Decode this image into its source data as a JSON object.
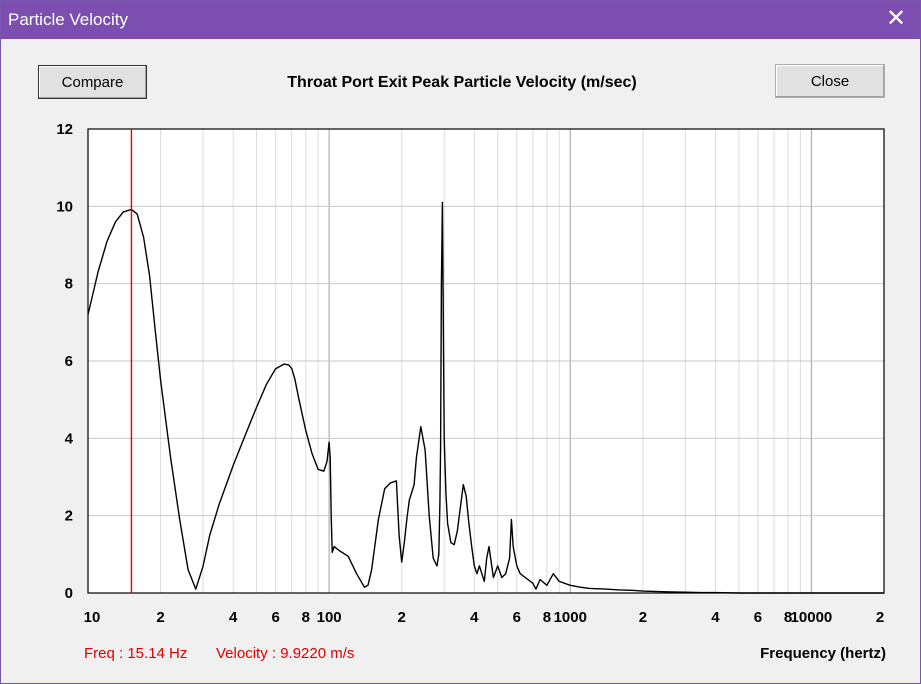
{
  "window": {
    "title": "Particle Velocity",
    "close_glyph": "✕"
  },
  "buttons": {
    "compare": "Compare",
    "close": "Close"
  },
  "readout": {
    "freq": "Freq : 15.14 Hz",
    "velocity": "Velocity : 9.9220 m/s"
  },
  "colors": {
    "titlebar": "#7b4eb0",
    "cursor": "#e00000",
    "line": "#000000",
    "grid": "#c8c8c8"
  },
  "chart_data": {
    "type": "line",
    "title": "Throat Port Exit Peak Particle Velocity (m/sec)",
    "xlabel": "Frequency (hertz)",
    "ylabel": "",
    "xscale": "log",
    "xlim": [
      10,
      20000
    ],
    "ylim": [
      0,
      12
    ],
    "grid": true,
    "y_ticks": [
      0,
      2,
      4,
      6,
      8,
      10,
      12
    ],
    "y_tick_labels": [
      "0",
      "2",
      "4",
      "6",
      "8",
      "10",
      "12"
    ],
    "x_ticks": [
      10,
      20,
      40,
      60,
      80,
      100,
      200,
      400,
      600,
      800,
      1000,
      2000,
      4000,
      6000,
      8000,
      10000,
      20000
    ],
    "x_tick_labels": [
      "10",
      "2",
      "4",
      "6",
      "8",
      "100",
      "2",
      "4",
      "6",
      "8",
      "1000",
      "2",
      "4",
      "6",
      "8",
      "10000",
      "2"
    ],
    "cursor_x": 15.14,
    "series": [
      {
        "x": [
          10,
          11,
          12,
          13,
          14,
          15.14,
          16,
          17,
          18,
          19,
          20,
          22,
          24,
          26,
          28,
          30,
          32,
          35,
          40,
          45,
          50,
          55,
          60,
          65,
          68,
          70,
          72,
          75,
          80,
          85,
          90,
          95,
          98,
          100,
          101,
          102,
          103,
          105,
          110,
          120,
          130,
          140,
          145,
          150,
          160,
          170,
          180,
          190,
          195,
          200,
          205,
          210,
          215,
          220,
          225,
          230,
          240,
          250,
          260,
          270,
          280,
          285,
          288,
          290,
          292,
          295,
          300,
          305,
          310,
          320,
          330,
          340,
          350,
          360,
          370,
          380,
          390,
          400,
          410,
          420,
          440,
          450,
          460,
          470,
          480,
          500,
          520,
          540,
          560,
          570,
          580,
          600,
          620,
          650,
          700,
          720,
          750,
          800,
          850,
          900,
          1000,
          1100,
          1200,
          1400,
          1600,
          1800,
          2000,
          2500,
          3000,
          3500,
          4000,
          5000,
          6000,
          8000,
          10000,
          12000,
          15000,
          17000,
          20000
        ],
        "y": [
          7.2,
          8.3,
          9.1,
          9.6,
          9.85,
          9.92,
          9.8,
          9.2,
          8.2,
          6.8,
          5.5,
          3.5,
          1.9,
          0.6,
          0.1,
          0.7,
          1.5,
          2.3,
          3.3,
          4.1,
          4.8,
          5.4,
          5.8,
          5.92,
          5.9,
          5.8,
          5.55,
          5.0,
          4.2,
          3.6,
          3.2,
          3.15,
          3.4,
          3.9,
          3.5,
          2.0,
          1.05,
          1.2,
          1.1,
          0.95,
          0.5,
          0.15,
          0.2,
          0.6,
          1.9,
          2.7,
          2.85,
          2.9,
          1.5,
          0.8,
          1.3,
          1.9,
          2.4,
          2.6,
          2.8,
          3.5,
          4.3,
          3.7,
          2.0,
          0.9,
          0.7,
          1.0,
          2.3,
          3.8,
          8.0,
          10.1,
          4.0,
          2.6,
          1.8,
          1.3,
          1.25,
          1.6,
          2.2,
          2.8,
          2.5,
          1.8,
          1.2,
          0.7,
          0.5,
          0.7,
          0.3,
          0.9,
          1.2,
          0.8,
          0.4,
          0.7,
          0.4,
          0.5,
          0.9,
          1.9,
          1.2,
          0.7,
          0.5,
          0.4,
          0.25,
          0.1,
          0.35,
          0.2,
          0.5,
          0.3,
          0.2,
          0.15,
          0.12,
          0.1,
          0.08,
          0.07,
          0.05,
          0.03,
          0.02,
          0.01,
          0.01,
          0.0,
          0.0,
          0.0,
          0.0,
          0.0,
          0.0,
          0.0,
          0.0
        ]
      }
    ]
  }
}
